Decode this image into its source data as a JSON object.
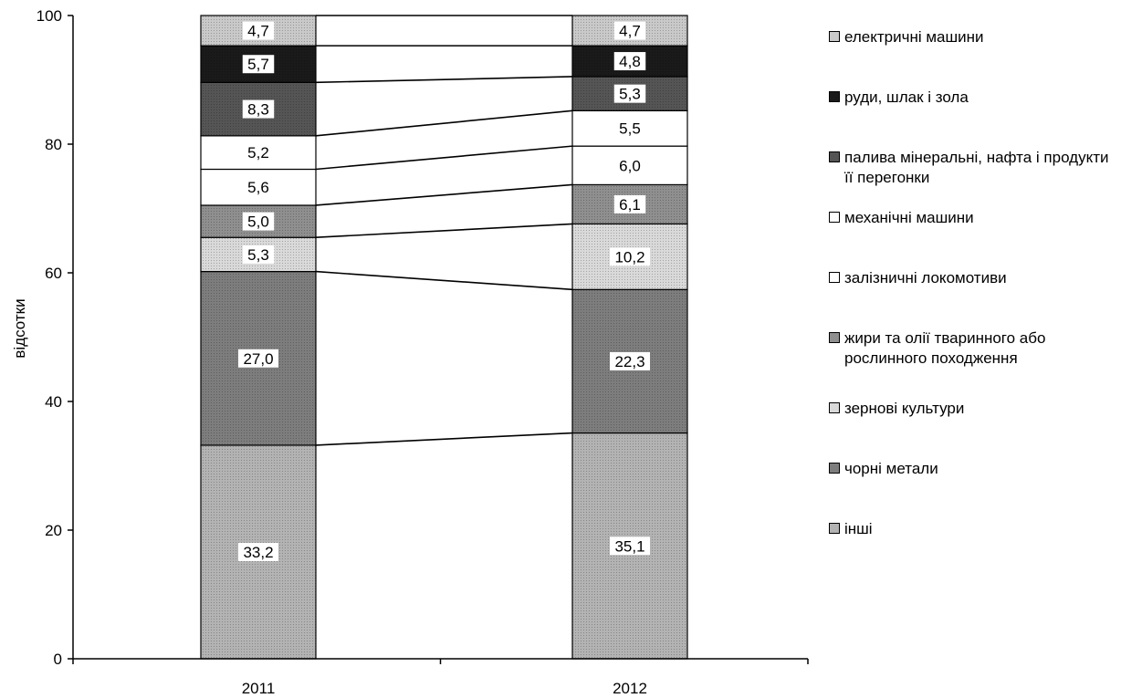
{
  "chart_data": {
    "type": "bar",
    "stacked": true,
    "ylabel": "відсотки",
    "ylim": [
      0,
      100
    ],
    "yticks": [
      "0",
      "20",
      "40",
      "60",
      "80",
      "100"
    ],
    "categories": [
      "2011",
      "2012"
    ],
    "series": [
      {
        "name": "інші",
        "values": [
          33.2,
          35.1
        ],
        "labels": [
          "33,2",
          "35,1"
        ],
        "color": "#b3b3b3"
      },
      {
        "name": "чорні метали",
        "values": [
          27.0,
          22.3
        ],
        "labels": [
          "27,0",
          "22,3"
        ],
        "color": "#7d7d7d"
      },
      {
        "name": "зернові культури",
        "values": [
          5.3,
          10.2
        ],
        "labels": [
          "5,3",
          "10,2"
        ],
        "color": "#d9d9d9"
      },
      {
        "name": "жири та олії тваринного або рослинного походження",
        "values": [
          5.0,
          6.1
        ],
        "labels": [
          "5,0",
          "6,1"
        ],
        "color": "#8f8f8f"
      },
      {
        "name": "залізничні локомотиви",
        "values": [
          5.6,
          6.0
        ],
        "labels": [
          "5,6",
          "6,0"
        ],
        "color": "#ffffff"
      },
      {
        "name": "механічні машини",
        "values": [
          5.2,
          5.5
        ],
        "labels": [
          "5,2",
          "5,5"
        ],
        "color": "#ffffff"
      },
      {
        "name": "палива мінеральні, нафта і продукти її перегонки",
        "values": [
          8.3,
          5.3
        ],
        "labels": [
          "8,3",
          "5,3"
        ],
        "color": "#555555"
      },
      {
        "name": "руди, шлак і зола",
        "values": [
          5.7,
          4.8
        ],
        "labels": [
          "5,7",
          "4,8"
        ],
        "color": "#1a1a1a"
      },
      {
        "name": "електричні машини",
        "values": [
          4.7,
          4.7
        ],
        "labels": [
          "4,7",
          "4,7"
        ],
        "color": "#c9c9c9"
      }
    ],
    "legend_order": [
      8,
      7,
      6,
      5,
      4,
      3,
      2,
      1,
      0
    ],
    "legend_position": "right",
    "connector_lines": true,
    "grid": false
  }
}
